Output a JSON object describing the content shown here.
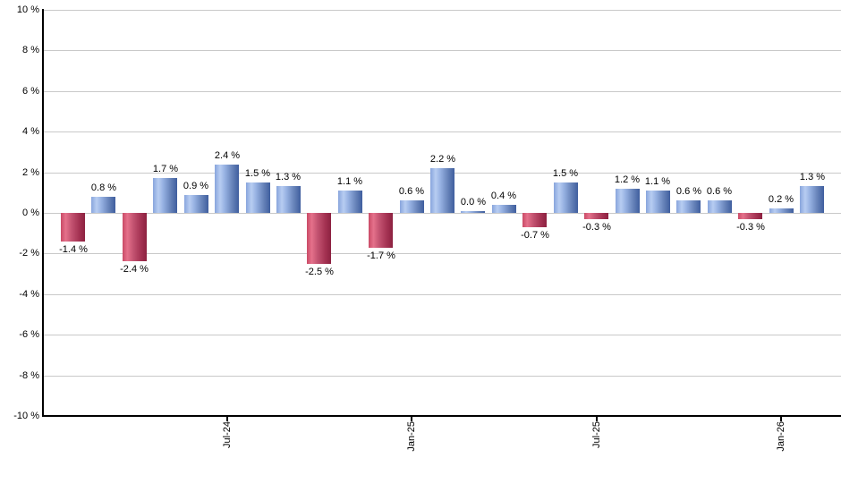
{
  "chart_data": {
    "type": "bar",
    "title": "",
    "xlabel": "",
    "ylabel": "",
    "y_unit": "%",
    "ylim": [
      -10,
      10
    ],
    "grid": true,
    "legend": false,
    "y_ticks": [
      10,
      8,
      6,
      4,
      2,
      0,
      -2,
      -4,
      -6,
      -8,
      -10
    ],
    "y_tick_labels": [
      "10 %",
      "8 %",
      "6 %",
      "4 %",
      "2 %",
      "0 %",
      "-2 %",
      "-4 %",
      "-6 %",
      "-8 %",
      "-10 %"
    ],
    "values": [
      -1.4,
      0.8,
      -2.4,
      1.7,
      0.9,
      2.4,
      1.5,
      1.3,
      -2.5,
      1.1,
      -1.7,
      0.6,
      2.2,
      0.0,
      0.4,
      -0.7,
      1.5,
      -0.3,
      1.2,
      1.1,
      0.6,
      0.6,
      -0.3,
      0.2,
      1.3
    ],
    "bar_labels": [
      "-1.4 %",
      "0.8 %",
      "-2.4 %",
      "1.7 %",
      "0.9 %",
      "2.4 %",
      "1.5 %",
      "1.3 %",
      "-2.5 %",
      "1.1 %",
      "-1.7 %",
      "0.6 %",
      "2.2 %",
      "0.0 %",
      "0.4 %",
      "-0.7 %",
      "1.5 %",
      "-0.3 %",
      "1.2 %",
      "1.1 %",
      "0.6 %",
      "0.6 %",
      "-0.3 %",
      "0.2 %",
      "1.3 %"
    ],
    "x_ticks": [
      {
        "bar_index": 5,
        "label": "Jul-24"
      },
      {
        "bar_index": 11,
        "label": "Jan-25"
      },
      {
        "bar_index": 17,
        "label": "Jul-25"
      },
      {
        "bar_index": 23,
        "label": "Jan-26"
      }
    ],
    "colors": {
      "positive_gradient": [
        {
          "color": "#88a5dc",
          "stop": 0
        },
        {
          "color": "#b8cdf2",
          "stop": 22
        },
        {
          "color": "#96b1e2",
          "stop": 42
        },
        {
          "color": "#6884ba",
          "stop": 72
        },
        {
          "color": "#3f5e9e",
          "stop": 100
        }
      ],
      "negative_gradient": [
        {
          "color": "#c94a66",
          "stop": 0
        },
        {
          "color": "#e5718b",
          "stop": 20
        },
        {
          "color": "#c25270",
          "stop": 45
        },
        {
          "color": "#a53353",
          "stop": 75
        },
        {
          "color": "#8c2140",
          "stop": 100
        }
      ],
      "gridline": "#c9c9c9",
      "axis": "#000000",
      "label_text": "#000000"
    }
  }
}
